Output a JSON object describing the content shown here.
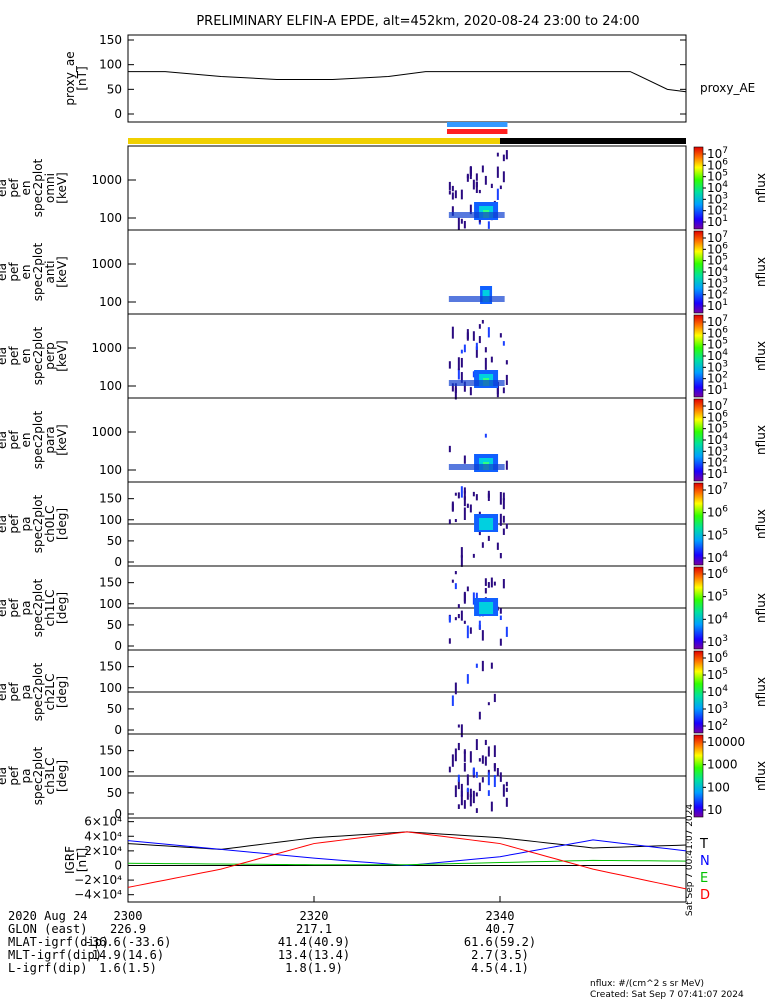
{
  "title": "PRELIMINARY ELFIN-A EPDE, alt=452km, 2020-08-24 23:00 to 24:00",
  "chart_data": {
    "type": "line",
    "panels": [
      {
        "id": "proxy_ae",
        "ylabel": [
          "proxy_ae",
          "[nT]"
        ],
        "ylim": [
          0,
          150
        ],
        "yticks": [
          "150",
          "100",
          "50",
          "0"
        ],
        "series": [
          {
            "name": "proxy_AE",
            "x_min": [
              0,
              4,
              10,
              16,
              22,
              28,
              32,
              36,
              42,
              48,
              54,
              58,
              60
            ],
            "values": [
              86,
              86,
              76,
              70,
              70,
              76,
              86,
              86,
              86,
              86,
              86,
              50,
              45
            ]
          }
        ]
      },
      {
        "id": "omni",
        "ylabel": [
          "ela",
          "pef",
          "en",
          "spec2plot",
          "omni",
          "[keV]"
        ],
        "yticks": [
          "1000",
          "100"
        ],
        "cblabel": "nflux",
        "cbticks": [
          "10^7",
          "10^6",
          "10^5",
          "10^4",
          "10^3",
          "10^2",
          "10^1"
        ]
      },
      {
        "id": "anti",
        "ylabel": [
          "ela",
          "pef",
          "en",
          "spec2plot",
          "anti",
          "[keV]"
        ],
        "yticks": [
          "1000",
          "100"
        ],
        "cblabel": "nflux",
        "cbticks": [
          "10^7",
          "10^6",
          "10^5",
          "10^4",
          "10^3",
          "10^2",
          "10^1"
        ]
      },
      {
        "id": "perp",
        "ylabel": [
          "ela",
          "pef",
          "en",
          "spec2plot",
          "perp",
          "[keV]"
        ],
        "yticks": [
          "1000",
          "100"
        ],
        "cblabel": "nflux",
        "cbticks": [
          "10^7",
          "10^6",
          "10^5",
          "10^4",
          "10^3",
          "10^2",
          "10^1"
        ]
      },
      {
        "id": "para",
        "ylabel": [
          "ela",
          "pef",
          "en",
          "spec2plot",
          "para",
          "[keV]"
        ],
        "yticks": [
          "1000",
          "100"
        ],
        "cblabel": "nflux",
        "cbticks": [
          "10^7",
          "10^6",
          "10^5",
          "10^4",
          "10^3",
          "10^2",
          "10^1"
        ]
      },
      {
        "id": "ch0LC",
        "ylabel": [
          "ela",
          "pef",
          "pa",
          "spec2plot",
          "ch0LC",
          "[deg]"
        ],
        "yticks": [
          "150",
          "100",
          "50",
          "0"
        ],
        "cblabel": "nflux",
        "cbticks": [
          "10^7",
          "10^6",
          "10^5",
          "10^4"
        ]
      },
      {
        "id": "ch1LC",
        "ylabel": [
          "ela",
          "pef",
          "pa",
          "spec2plot",
          "ch1LC",
          "[deg]"
        ],
        "yticks": [
          "150",
          "100",
          "50",
          "0"
        ],
        "cblabel": "nflux",
        "cbticks": [
          "10^6",
          "10^5",
          "10^4",
          "10^3"
        ]
      },
      {
        "id": "ch2LC",
        "ylabel": [
          "ela",
          "pef",
          "pa",
          "spec2plot",
          "ch2LC",
          "[deg]"
        ],
        "yticks": [
          "150",
          "100",
          "50",
          "0"
        ],
        "cblabel": "nflux",
        "cbticks": [
          "10^6",
          "10^5",
          "10^4",
          "10^3",
          "10^2"
        ]
      },
      {
        "id": "ch3LC",
        "ylabel": [
          "ela",
          "pef",
          "pa",
          "spec2plot",
          "ch3LC",
          "[deg]"
        ],
        "yticks": [
          "150",
          "100",
          "50",
          "0"
        ],
        "cblabel": "nflux",
        "cbticks": [
          "10000",
          "1000",
          "100",
          "10"
        ]
      },
      {
        "id": "igrf",
        "ylabel": [
          "IGRF",
          "[nT]"
        ],
        "yticks": [
          "6×10⁴",
          "4×10⁴",
          "2×10⁴",
          "0",
          "−2×10⁴",
          "−4×10⁴"
        ],
        "series": [
          {
            "name": "T",
            "color": "#000000",
            "x_min": [
              0,
              10,
              20,
              30,
              40,
              50,
              60
            ],
            "values": [
              30000,
              22000,
              38000,
              46000,
              38000,
              24000,
              28000
            ]
          },
          {
            "name": "N",
            "color": "#0000ff",
            "x_min": [
              0,
              10,
              20,
              30,
              40,
              50,
              60
            ],
            "values": [
              34000,
              22000,
              10000,
              0,
              12000,
              35000,
              20000
            ]
          },
          {
            "name": "E",
            "color": "#00c000",
            "x_min": [
              0,
              10,
              20,
              30,
              40,
              50,
              60
            ],
            "values": [
              3000,
              2000,
              1000,
              1000,
              4000,
              7000,
              6000
            ]
          },
          {
            "name": "D",
            "color": "#ff0000",
            "x_min": [
              0,
              10,
              20,
              30,
              40,
              50,
              60
            ],
            "values": [
              -30000,
              -5000,
              30000,
              46000,
              30000,
              -5000,
              -32000
            ]
          }
        ]
      }
    ],
    "state_bar_colors": {
      "top": "#3399ff",
      "bottom": "#ff2020",
      "day": "#f0d000",
      "night": "#000000"
    }
  },
  "legend_igrf": [
    "T",
    "N",
    "E",
    "D"
  ],
  "ae_label": "proxy_AE",
  "side_stamp": "Sat Sep  7 00:41:07 2024",
  "footer": {
    "rows": [
      {
        "label": "2020 Aug 24",
        "vals": [
          "2300",
          "2320",
          "2340"
        ]
      },
      {
        "label": "GLON (east)",
        "vals": [
          "226.9",
          "217.1",
          "40.7"
        ]
      },
      {
        "label": "MLAT-igrf(dip)",
        "vals": [
          "-36.6(-33.6)",
          "41.4(40.9)",
          "61.6(59.2)"
        ]
      },
      {
        "label": "MLT-igrf(dip)",
        "vals": [
          "14.9(14.6)",
          "13.4(13.4)",
          "2.7(3.5)"
        ]
      },
      {
        "label": "L-igrf(dip)",
        "vals": [
          "1.6(1.5)",
          "1.8(1.9)",
          "4.5(4.1)"
        ]
      }
    ],
    "units": "nflux: #/(cm^2 s sr MeV)",
    "created": "Created: Sat Sep  7 07:41:07 2024"
  }
}
